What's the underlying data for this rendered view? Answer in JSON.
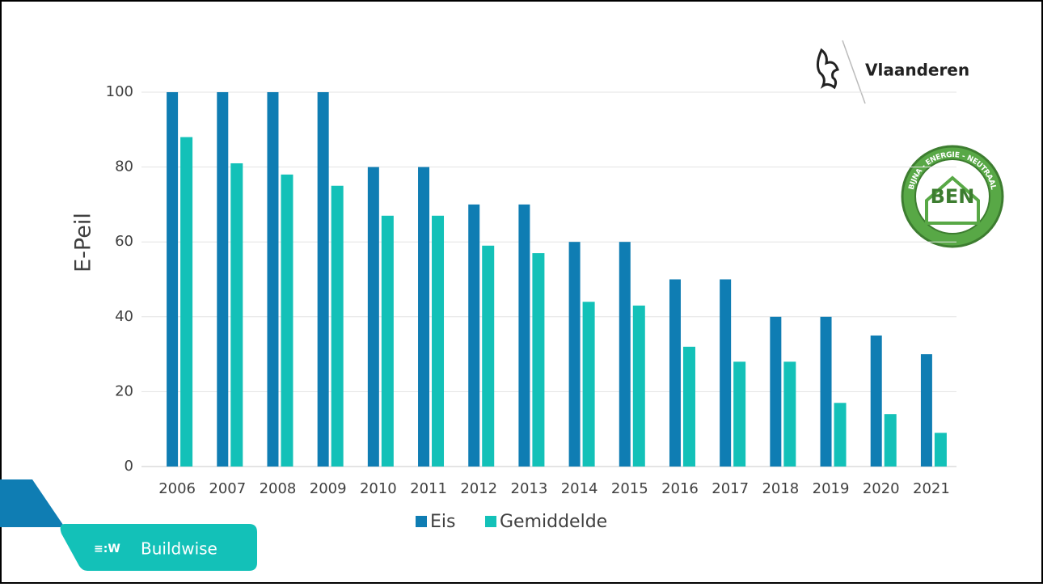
{
  "chart_data": {
    "type": "bar",
    "y_label": "E-Peil",
    "categories": [
      "2006",
      "2007",
      "2008",
      "2009",
      "2010",
      "2011",
      "2012",
      "2013",
      "2014",
      "2015",
      "2016",
      "2017",
      "2018",
      "2019",
      "2020",
      "2021"
    ],
    "series": [
      {
        "name": "Eis",
        "color": "#0f7db3",
        "values": [
          100,
          100,
          100,
          100,
          80,
          80,
          70,
          70,
          60,
          60,
          50,
          50,
          40,
          40,
          35,
          30
        ]
      },
      {
        "name": "Gemiddelde",
        "color": "#13c1b8",
        "values": [
          88,
          81,
          78,
          75,
          67,
          67,
          59,
          57,
          44,
          43,
          32,
          28,
          28,
          17,
          14,
          9
        ]
      }
    ],
    "ylim": [
      0,
      100
    ],
    "yticks": [
      0,
      20,
      40,
      60,
      80,
      100
    ],
    "grid": true,
    "legend": "bottom"
  },
  "logos": {
    "vlaanderen": "Vlaanderen",
    "ben": "BEN",
    "ben_ring": "BIJNA - ENERGIE - NEUTRAAL",
    "buildwise": "Buildwise"
  }
}
